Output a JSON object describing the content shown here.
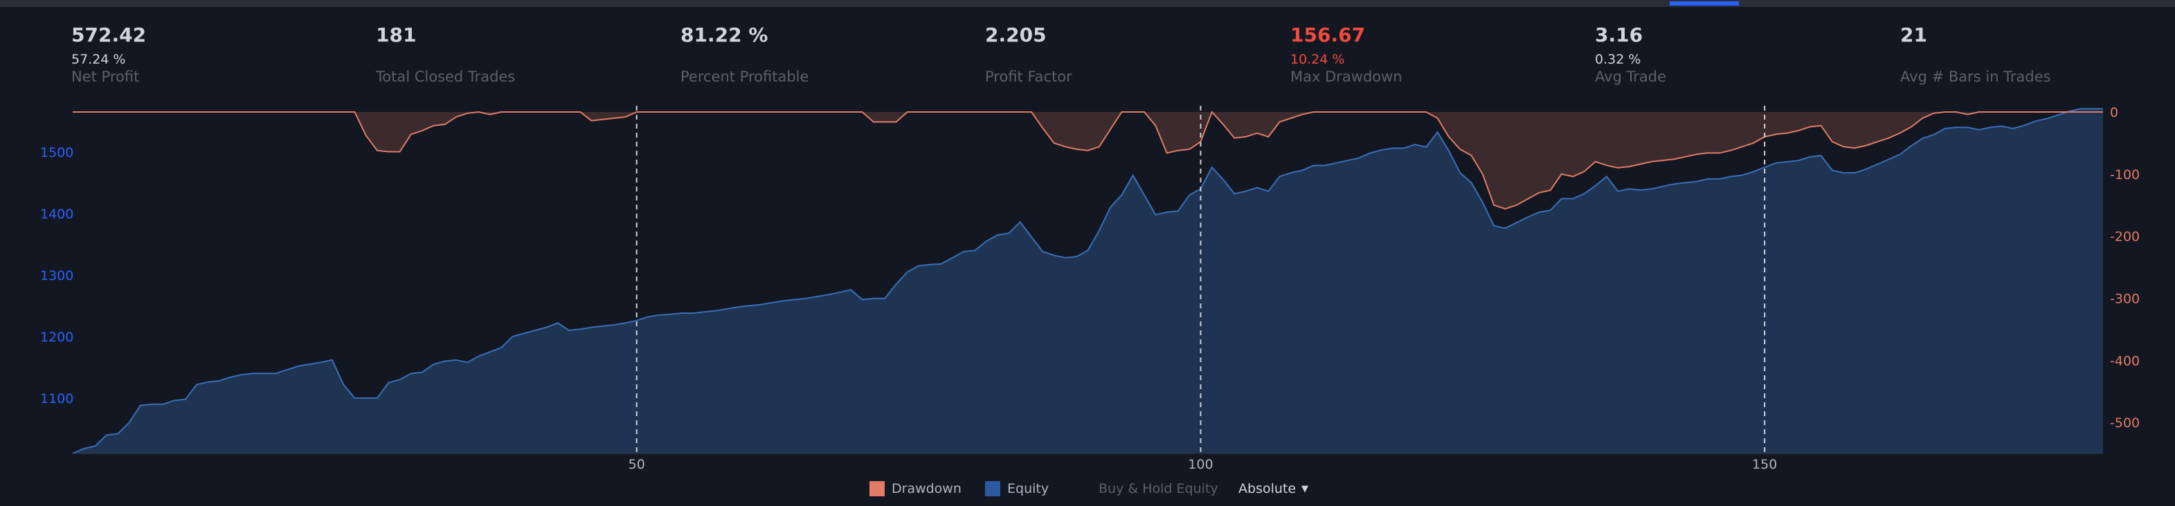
{
  "stats": [
    {
      "value": "572.42",
      "sub": "57.24 %",
      "label": "Net Profit",
      "color": "#d1d4dc"
    },
    {
      "value": "181",
      "sub": "",
      "label": "Total Closed Trades",
      "color": "#d1d4dc"
    },
    {
      "value": "81.22 %",
      "sub": "",
      "label": "Percent Profitable",
      "color": "#d1d4dc"
    },
    {
      "value": "2.205",
      "sub": "",
      "label": "Profit Factor",
      "color": "#d1d4dc"
    },
    {
      "value": "156.67",
      "sub": "10.24 %",
      "label": "Max Drawdown",
      "color": "#f04a3e"
    },
    {
      "value": "3.16",
      "sub": "0.32 %",
      "label": "Avg Trade",
      "color": "#d1d4dc"
    },
    {
      "value": "21",
      "sub": "",
      "label": "Avg # Bars in Trades",
      "color": "#d1d4dc"
    }
  ],
  "legend": {
    "drawdown": "Drawdown",
    "equity": "Equity",
    "buy_hold": "Buy & Hold Equity",
    "mode": "Absolute",
    "drawdown_color": "#e07b67",
    "equity_color": "#2c5a9e"
  },
  "chart_data": {
    "type": "area",
    "x_ticks": [
      50,
      100,
      150
    ],
    "xlim": [
      0,
      180
    ],
    "left_axis": {
      "ticks": [
        1100,
        1200,
        1300,
        1400,
        1500
      ],
      "ylim": [
        1010,
        1575
      ],
      "color": "#2962ff"
    },
    "right_axis": {
      "ticks": [
        0,
        -100,
        -200,
        -300,
        -400,
        -500
      ],
      "ylim": [
        -550,
        10
      ],
      "color": "#e07b67"
    },
    "vertical_markers": [
      50,
      100,
      150
    ],
    "series": [
      {
        "name": "Equity",
        "axis": "left",
        "color": "#2c5a9e",
        "points": [
          [
            0,
            1010
          ],
          [
            1,
            1018
          ],
          [
            2,
            1022
          ],
          [
            3,
            1040
          ],
          [
            4,
            1042
          ],
          [
            5,
            1060
          ],
          [
            6,
            1088
          ],
          [
            7,
            1090
          ],
          [
            8,
            1090
          ],
          [
            9,
            1096
          ],
          [
            10,
            1098
          ],
          [
            11,
            1122
          ],
          [
            12,
            1126
          ],
          [
            13,
            1128
          ],
          [
            14,
            1134
          ],
          [
            15,
            1138
          ],
          [
            16,
            1140
          ],
          [
            17,
            1140
          ],
          [
            18,
            1140
          ],
          [
            19,
            1146
          ],
          [
            20,
            1152
          ],
          [
            21,
            1155
          ],
          [
            22,
            1158
          ],
          [
            23,
            1162
          ],
          [
            24,
            1122
          ],
          [
            25,
            1100
          ],
          [
            26,
            1100
          ],
          [
            27,
            1100
          ],
          [
            28,
            1125
          ],
          [
            29,
            1130
          ],
          [
            30,
            1140
          ],
          [
            31,
            1142
          ],
          [
            32,
            1155
          ],
          [
            33,
            1160
          ],
          [
            34,
            1162
          ],
          [
            35,
            1158
          ],
          [
            36,
            1168
          ],
          [
            37,
            1175
          ],
          [
            38,
            1182
          ],
          [
            39,
            1200
          ],
          [
            40,
            1205
          ],
          [
            41,
            1210
          ],
          [
            42,
            1215
          ],
          [
            43,
            1222
          ],
          [
            44,
            1210
          ],
          [
            45,
            1212
          ],
          [
            46,
            1215
          ],
          [
            47,
            1217
          ],
          [
            48,
            1219
          ],
          [
            49,
            1222
          ],
          [
            50,
            1226
          ],
          [
            51,
            1232
          ],
          [
            52,
            1235
          ],
          [
            53,
            1236
          ],
          [
            54,
            1238
          ],
          [
            55,
            1238
          ],
          [
            56,
            1240
          ],
          [
            57,
            1242
          ],
          [
            58,
            1245
          ],
          [
            59,
            1248
          ],
          [
            60,
            1250
          ],
          [
            61,
            1252
          ],
          [
            62,
            1255
          ],
          [
            63,
            1258
          ],
          [
            64,
            1260
          ],
          [
            65,
            1262
          ],
          [
            66,
            1265
          ],
          [
            67,
            1268
          ],
          [
            68,
            1272
          ],
          [
            69,
            1276
          ],
          [
            70,
            1260
          ],
          [
            71,
            1262
          ],
          [
            72,
            1262
          ],
          [
            73,
            1285
          ],
          [
            74,
            1305
          ],
          [
            75,
            1315
          ],
          [
            76,
            1317
          ],
          [
            77,
            1318
          ],
          [
            78,
            1328
          ],
          [
            79,
            1338
          ],
          [
            80,
            1340
          ],
          [
            81,
            1355
          ],
          [
            82,
            1365
          ],
          [
            83,
            1368
          ],
          [
            84,
            1386
          ],
          [
            85,
            1362
          ],
          [
            86,
            1338
          ],
          [
            87,
            1332
          ],
          [
            88,
            1328
          ],
          [
            89,
            1330
          ],
          [
            90,
            1340
          ],
          [
            91,
            1372
          ],
          [
            92,
            1410
          ],
          [
            93,
            1430
          ],
          [
            94,
            1462
          ],
          [
            95,
            1430
          ],
          [
            96,
            1398
          ],
          [
            97,
            1402
          ],
          [
            98,
            1404
          ],
          [
            99,
            1430
          ],
          [
            100,
            1440
          ],
          [
            101,
            1475
          ],
          [
            102,
            1455
          ],
          [
            103,
            1432
          ],
          [
            104,
            1436
          ],
          [
            105,
            1442
          ],
          [
            106,
            1436
          ],
          [
            107,
            1460
          ],
          [
            108,
            1466
          ],
          [
            109,
            1470
          ],
          [
            110,
            1478
          ],
          [
            111,
            1478
          ],
          [
            112,
            1482
          ],
          [
            113,
            1486
          ],
          [
            114,
            1490
          ],
          [
            115,
            1498
          ],
          [
            116,
            1503
          ],
          [
            117,
            1506
          ],
          [
            118,
            1506
          ],
          [
            119,
            1512
          ],
          [
            120,
            1508
          ],
          [
            121,
            1532
          ],
          [
            122,
            1502
          ],
          [
            123,
            1466
          ],
          [
            124,
            1450
          ],
          [
            125,
            1418
          ],
          [
            126,
            1380
          ],
          [
            127,
            1376
          ],
          [
            128,
            1385
          ],
          [
            129,
            1394
          ],
          [
            130,
            1402
          ],
          [
            131,
            1405
          ],
          [
            132,
            1424
          ],
          [
            133,
            1424
          ],
          [
            134,
            1432
          ],
          [
            135,
            1445
          ],
          [
            136,
            1460
          ],
          [
            137,
            1436
          ],
          [
            138,
            1440
          ],
          [
            139,
            1438
          ],
          [
            140,
            1440
          ],
          [
            141,
            1444
          ],
          [
            142,
            1448
          ],
          [
            143,
            1450
          ],
          [
            144,
            1452
          ],
          [
            145,
            1456
          ],
          [
            146,
            1456
          ],
          [
            147,
            1460
          ],
          [
            148,
            1462
          ],
          [
            149,
            1468
          ],
          [
            150,
            1475
          ],
          [
            151,
            1482
          ],
          [
            152,
            1484
          ],
          [
            153,
            1486
          ],
          [
            154,
            1492
          ],
          [
            155,
            1494
          ],
          [
            156,
            1470
          ],
          [
            157,
            1466
          ],
          [
            158,
            1466
          ],
          [
            159,
            1472
          ],
          [
            160,
            1480
          ],
          [
            161,
            1488
          ],
          [
            162,
            1496
          ],
          [
            163,
            1510
          ],
          [
            164,
            1522
          ],
          [
            165,
            1528
          ],
          [
            166,
            1538
          ],
          [
            167,
            1540
          ],
          [
            168,
            1540
          ],
          [
            169,
            1536
          ],
          [
            170,
            1540
          ],
          [
            171,
            1542
          ],
          [
            172,
            1538
          ],
          [
            173,
            1543
          ],
          [
            174,
            1550
          ],
          [
            175,
            1554
          ],
          [
            176,
            1560
          ],
          [
            177,
            1566
          ],
          [
            178,
            1570
          ],
          [
            179,
            1570
          ],
          [
            180,
            1570
          ]
        ]
      },
      {
        "name": "Drawdown",
        "axis": "right",
        "color": "#e07b67",
        "points": [
          [
            0,
            0
          ],
          [
            25,
            0
          ],
          [
            26,
            -38
          ],
          [
            27,
            -62
          ],
          [
            28,
            -64
          ],
          [
            29,
            -64
          ],
          [
            30,
            -36
          ],
          [
            31,
            -30
          ],
          [
            32,
            -22
          ],
          [
            33,
            -20
          ],
          [
            34,
            -8
          ],
          [
            35,
            -2
          ],
          [
            36,
            0
          ],
          [
            37,
            -4
          ],
          [
            38,
            0
          ],
          [
            45,
            0
          ],
          [
            46,
            -14
          ],
          [
            47,
            -12
          ],
          [
            48,
            -10
          ],
          [
            49,
            -8
          ],
          [
            50,
            0
          ],
          [
            70,
            0
          ],
          [
            71,
            -16
          ],
          [
            72,
            -16
          ],
          [
            73,
            -16
          ],
          [
            74,
            0
          ],
          [
            85,
            0
          ],
          [
            86,
            -26
          ],
          [
            87,
            -50
          ],
          [
            88,
            -56
          ],
          [
            89,
            -60
          ],
          [
            90,
            -62
          ],
          [
            91,
            -56
          ],
          [
            92,
            -28
          ],
          [
            93,
            0
          ],
          [
            95,
            0
          ],
          [
            96,
            -22
          ],
          [
            97,
            -66
          ],
          [
            98,
            -62
          ],
          [
            99,
            -60
          ],
          [
            100,
            -48
          ],
          [
            101,
            0
          ],
          [
            102,
            -20
          ],
          [
            103,
            -42
          ],
          [
            104,
            -40
          ],
          [
            105,
            -34
          ],
          [
            106,
            -40
          ],
          [
            107,
            -16
          ],
          [
            108,
            -10
          ],
          [
            109,
            -4
          ],
          [
            110,
            0
          ],
          [
            120,
            0
          ],
          [
            121,
            -10
          ],
          [
            122,
            -40
          ],
          [
            123,
            -60
          ],
          [
            124,
            -70
          ],
          [
            125,
            -100
          ],
          [
            126,
            -150
          ],
          [
            127,
            -156
          ],
          [
            128,
            -150
          ],
          [
            129,
            -140
          ],
          [
            130,
            -130
          ],
          [
            131,
            -126
          ],
          [
            132,
            -100
          ],
          [
            133,
            -104
          ],
          [
            134,
            -96
          ],
          [
            135,
            -80
          ],
          [
            136,
            -86
          ],
          [
            137,
            -90
          ],
          [
            138,
            -88
          ],
          [
            139,
            -84
          ],
          [
            140,
            -80
          ],
          [
            141,
            -78
          ],
          [
            142,
            -76
          ],
          [
            143,
            -72
          ],
          [
            144,
            -68
          ],
          [
            145,
            -66
          ],
          [
            146,
            -66
          ],
          [
            147,
            -62
          ],
          [
            148,
            -56
          ],
          [
            149,
            -50
          ],
          [
            150,
            -40
          ],
          [
            151,
            -36
          ],
          [
            152,
            -34
          ],
          [
            153,
            -30
          ],
          [
            154,
            -24
          ],
          [
            155,
            -22
          ],
          [
            156,
            -48
          ],
          [
            157,
            -56
          ],
          [
            158,
            -58
          ],
          [
            159,
            -54
          ],
          [
            160,
            -48
          ],
          [
            161,
            -42
          ],
          [
            162,
            -34
          ],
          [
            163,
            -24
          ],
          [
            164,
            -10
          ],
          [
            165,
            -2
          ],
          [
            166,
            0
          ],
          [
            167,
            0
          ],
          [
            168,
            -4
          ],
          [
            169,
            0
          ],
          [
            180,
            0
          ]
        ]
      }
    ]
  }
}
